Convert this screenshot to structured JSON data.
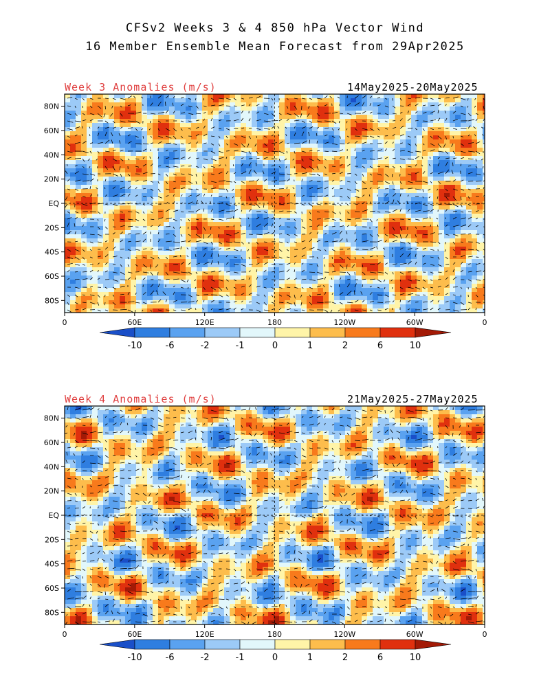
{
  "header": {
    "line1": "CFSv2 Weeks 3 & 4 850 hPa Vector Wind",
    "line2": "16 Member Ensemble Mean Forecast from 29Apr2025"
  },
  "panels": [
    {
      "label": "Week 3 Anomalies (m/s)",
      "dates": "14May2025-20May2025"
    },
    {
      "label": "Week 4 Anomalies (m/s)",
      "dates": "21May2025-27May2025"
    }
  ],
  "axes": {
    "lat_ticks": [
      "80N",
      "60N",
      "40N",
      "20N",
      "EQ",
      "20S",
      "40S",
      "60S",
      "80S"
    ],
    "lon_ticks": [
      "0",
      "60E",
      "120E",
      "180",
      "120W",
      "60W",
      "0"
    ]
  },
  "colorbar": {
    "labels": [
      "-10",
      "-6",
      "-2",
      "-1",
      "0",
      "1",
      "2",
      "6",
      "10"
    ],
    "colors": [
      "#1a4fc8",
      "#2f7ee0",
      "#5aa2f0",
      "#9ccaf7",
      "#e2f7fb",
      "#fff4a8",
      "#fdbd4c",
      "#f87a1c",
      "#e0300e",
      "#a31a06"
    ]
  }
}
